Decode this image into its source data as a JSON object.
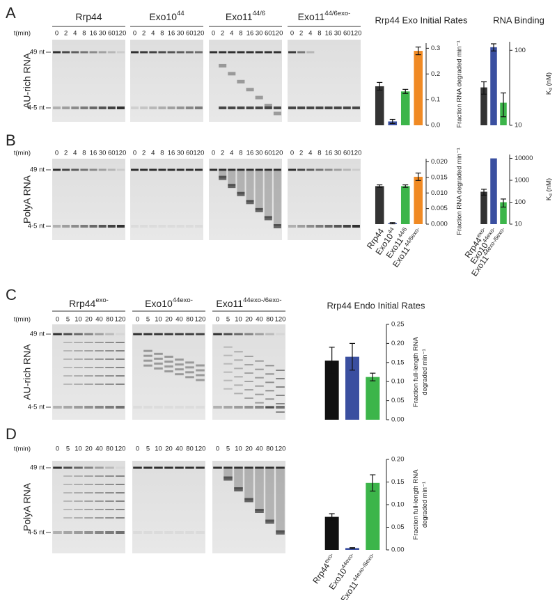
{
  "panels": [
    {
      "label": "A",
      "row_label": "AU-rich RNA",
      "t_label": "t(min)",
      "times": [
        0,
        2,
        4,
        8,
        16,
        30,
        60,
        120
      ],
      "marker_top": "49 nt",
      "marker_bottom": "4-5 nt",
      "gels": [
        {
          "name": "Rrp44"
        },
        {
          "name": "Exo10",
          "sup": "44"
        },
        {
          "name": "Exo11",
          "sup": "44/6"
        },
        {
          "name": "Exo11",
          "sup": "44/6exo-"
        }
      ]
    },
    {
      "label": "B",
      "row_label": "PolyA RNA",
      "t_label": "t(min)",
      "times": [
        0,
        2,
        4,
        8,
        16,
        30,
        60,
        120
      ],
      "marker_top": "49 nt",
      "marker_bottom": "4-5 nt"
    },
    {
      "label": "C",
      "row_label": "AU-rich RNA",
      "t_label": "t(min)",
      "times": [
        0,
        5,
        10,
        20,
        40,
        80,
        120
      ],
      "marker_top": "49 nt",
      "marker_bottom": "4-5 nt",
      "gels": [
        {
          "name": "Rrp44",
          "sup": "exo-"
        },
        {
          "name": "Exo10",
          "sup": "44exo-"
        },
        {
          "name": "Exo11",
          "sup": "44exo-/6exo-"
        }
      ]
    },
    {
      "label": "D",
      "row_label": "PolyA RNA",
      "t_label": "t(min)",
      "times": [
        0,
        5,
        10,
        20,
        40,
        80,
        120
      ],
      "marker_top": "49 nt",
      "marker_bottom": "4-5 nt"
    }
  ],
  "chart_data": [
    {
      "type": "bar",
      "title": "Rrp44 Exo Initial Rates",
      "categories": [
        null,
        null,
        null,
        null
      ],
      "values": [
        0.152,
        0.015,
        0.132,
        0.29
      ],
      "errors": [
        0.015,
        0.008,
        0.008,
        0.015
      ],
      "colors": [
        "#333333",
        "#3a4fa0",
        "#3cb54a",
        "#f08a24"
      ],
      "ylim": [
        0,
        0.32
      ],
      "yticks": [
        {
          "value": 0,
          "label": "0.0"
        },
        0.1,
        0.2,
        0.3
      ],
      "ylabel": [
        "Fraction RNA degraded min⁻¹"
      ]
    },
    {
      "type": "bar",
      "title": "RNA Binding",
      "log_scale": true,
      "categories": [
        null,
        null,
        null
      ],
      "values": [
        32,
        110,
        20
      ],
      "errors": [
        6,
        12,
        7
      ],
      "colors": [
        "#333333",
        "#3a4fa0",
        "#3cb54a"
      ],
      "ylim": [
        10,
        130
      ],
      "yticks": [
        10,
        100
      ],
      "ylabel": [
        [
          {
            "text": "K"
          },
          {
            "text": "d",
            "shift": "sub"
          },
          {
            "text": " (nM)"
          }
        ]
      ]
    },
    {
      "type": "bar",
      "categories": [
        "Rrp44",
        "Exo10",
        "Exo11",
        "Exo11"
      ],
      "category_sups": [
        null,
        "44",
        "44/6",
        "44/6exo-"
      ],
      "values": [
        0.0122,
        0.0003,
        0.0122,
        0.0152
      ],
      "errors": [
        0.0004,
        0.0002,
        0.0004,
        0.0012
      ],
      "colors": [
        "#333333",
        "#3a4fa0",
        "#3cb54a",
        "#f08a24"
      ],
      "ylim": [
        0,
        0.021
      ],
      "yticks": [
        {
          "value": 0,
          "label": "0.000"
        },
        {
          "value": 0.005,
          "label": "0.005"
        },
        {
          "value": 0.01,
          "label": "0.010"
        },
        {
          "value": 0.015,
          "label": "0.015"
        },
        {
          "value": 0.02,
          "label": "0.020"
        }
      ],
      "ylabel": [
        "Fraction RNA degraded min⁻¹"
      ]
    },
    {
      "type": "bar",
      "log_scale": true,
      "categories": [
        "Rrp44",
        "Exo10",
        "Exo11"
      ],
      "category_sups": [
        "exo-",
        "44exo-",
        "44exo-/6exo-"
      ],
      "values": [
        300,
        10000,
        100
      ],
      "errors": [
        90,
        null,
        40
      ],
      "colors": [
        "#333333",
        "#3a4fa0",
        "#3cb54a"
      ],
      "ylim": [
        10,
        15000
      ],
      "yticks": [
        10,
        100,
        1000,
        10000
      ],
      "ylabel": [
        [
          {
            "text": "K"
          },
          {
            "text": "d",
            "shift": "sub"
          },
          {
            "text": " (nM)"
          }
        ]
      ]
    },
    {
      "type": "bar",
      "title": "Rrp44 Endo Initial Rates",
      "categories": [
        null,
        null,
        null
      ],
      "values": [
        0.155,
        0.165,
        0.112
      ],
      "errors": [
        0.035,
        0.035,
        0.01
      ],
      "colors": [
        "#111111",
        "#3a4fa0",
        "#3cb54a"
      ],
      "ylim": [
        0,
        0.25
      ],
      "yticks": [
        {
          "value": 0,
          "label": "0.00"
        },
        {
          "value": 0.05,
          "label": "0.05"
        },
        {
          "value": 0.1,
          "label": "0.10"
        },
        {
          "value": 0.15,
          "label": "0.15"
        },
        {
          "value": 0.2,
          "label": "0.20"
        },
        {
          "value": 0.25,
          "label": "0.25"
        }
      ],
      "ylabel": [
        "Fraction full-length RNA",
        "degraded min⁻¹"
      ]
    },
    {
      "type": "bar",
      "categories": [
        "Rrp44",
        "Exo10",
        "Exo11"
      ],
      "category_sups": [
        "exo-",
        "44exo-",
        "44exo-/6exo-"
      ],
      "values": [
        0.073,
        0.004,
        0.148
      ],
      "errors": [
        0.007,
        0.001,
        0.018
      ],
      "colors": [
        "#111111",
        "#3a4fa0",
        "#3cb54a"
      ],
      "ylim": [
        0,
        0.2
      ],
      "yticks": [
        {
          "value": 0,
          "label": "0.00"
        },
        {
          "value": 0.05,
          "label": "0.05"
        },
        {
          "value": 0.1,
          "label": "0.10"
        },
        {
          "value": 0.15,
          "label": "0.15"
        },
        {
          "value": 0.2,
          "label": "0.20"
        }
      ],
      "ylabel": [
        "Fraction full-length RNA",
        "degraded min⁻¹"
      ]
    }
  ]
}
